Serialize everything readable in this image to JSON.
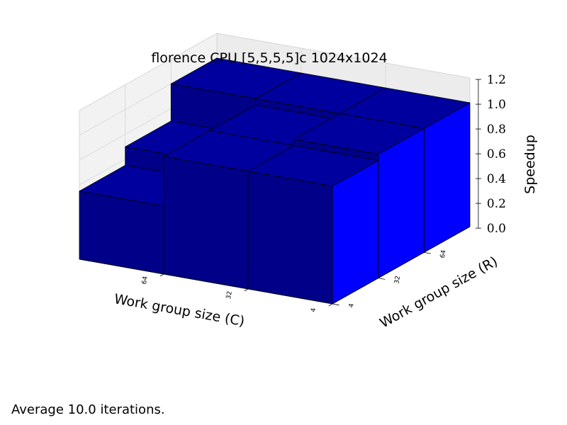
{
  "chart_data": {
    "type": "bar3d",
    "title": "florence CPU [5,5,5,5]c 1024x1024",
    "xlabel": "Work group size (C)",
    "ylabel": "Work group size (R)",
    "zlabel": "Speedup",
    "x_categories": [
      "4",
      "32",
      "64"
    ],
    "y_categories": [
      "4",
      "32",
      "64"
    ],
    "z_ticks": [
      "0.0",
      "0.2",
      "0.4",
      "0.6",
      "0.8",
      "1.0",
      "1.2"
    ],
    "zlim": [
      0,
      1.2
    ],
    "bar_color": "#0000ff",
    "grid": true,
    "values": [
      [
        0.55,
        0.7,
        1.0
      ],
      [
        0.95,
        0.95,
        1.0
      ],
      [
        0.95,
        1.0,
        1.0
      ]
    ]
  },
  "footnote": "Average 10.0 iterations."
}
